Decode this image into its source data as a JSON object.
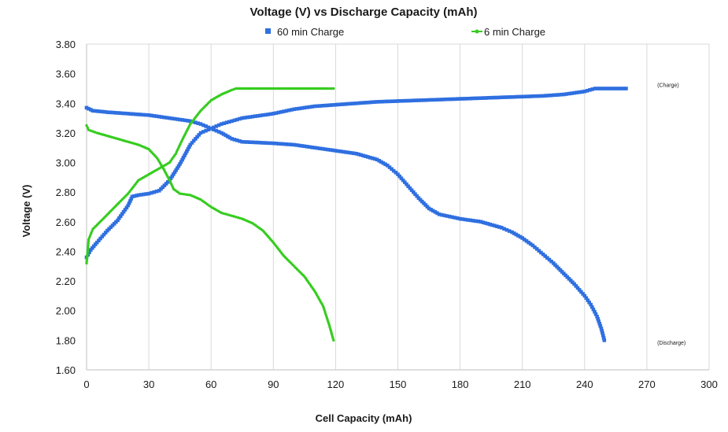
{
  "chart_data": {
    "type": "scatter",
    "title": "Voltage (V) vs Discharge Capacity (mAh)",
    "xlabel": "Cell Capacity (mAh)",
    "ylabel": "Voltage (V)",
    "xlim": [
      0,
      300
    ],
    "ylim": [
      1.6,
      3.8
    ],
    "xticks": [
      0,
      30,
      60,
      90,
      120,
      150,
      180,
      210,
      240,
      270,
      300
    ],
    "yticks": [
      1.6,
      1.8,
      2.0,
      2.2,
      2.4,
      2.6,
      2.8,
      3.0,
      3.2,
      3.4,
      3.6,
      3.8
    ],
    "ytick_labels": [
      "1.60",
      "1.80",
      "2.00",
      "2.20",
      "2.40",
      "2.60",
      "2.80",
      "3.00",
      "3.20",
      "3.40",
      "3.60",
      "3.80"
    ],
    "grid": "vertical",
    "legend_position": "top",
    "annotations": [
      {
        "text": "(Charge)",
        "x": 275,
        "y": 3.51
      },
      {
        "text": "(Discharge)",
        "x": 275,
        "y": 1.77
      }
    ],
    "series": [
      {
        "name": "60 min Charge",
        "subtype": "charge",
        "color": "#2f6fe0",
        "marker": "square",
        "points": [
          [
            0,
            2.36
          ],
          [
            2,
            2.41
          ],
          [
            5,
            2.46
          ],
          [
            10,
            2.54
          ],
          [
            15,
            2.61
          ],
          [
            20,
            2.71
          ],
          [
            22,
            2.77
          ],
          [
            25,
            2.78
          ],
          [
            30,
            2.79
          ],
          [
            35,
            2.81
          ],
          [
            40,
            2.88
          ],
          [
            45,
            2.99
          ],
          [
            50,
            3.12
          ],
          [
            55,
            3.2
          ],
          [
            60,
            3.23
          ],
          [
            65,
            3.26
          ],
          [
            70,
            3.28
          ],
          [
            75,
            3.3
          ],
          [
            80,
            3.31
          ],
          [
            90,
            3.33
          ],
          [
            100,
            3.36
          ],
          [
            110,
            3.38
          ],
          [
            120,
            3.39
          ],
          [
            140,
            3.41
          ],
          [
            160,
            3.42
          ],
          [
            180,
            3.43
          ],
          [
            200,
            3.44
          ],
          [
            220,
            3.45
          ],
          [
            230,
            3.46
          ],
          [
            240,
            3.48
          ],
          [
            245,
            3.5
          ],
          [
            250,
            3.5
          ],
          [
            255,
            3.5
          ],
          [
            260,
            3.5
          ]
        ]
      },
      {
        "name": "60 min Charge",
        "subtype": "discharge",
        "color": "#2f6fe0",
        "marker": "square",
        "points": [
          [
            0,
            3.37
          ],
          [
            3,
            3.35
          ],
          [
            10,
            3.34
          ],
          [
            20,
            3.33
          ],
          [
            30,
            3.32
          ],
          [
            40,
            3.3
          ],
          [
            50,
            3.28
          ],
          [
            55,
            3.26
          ],
          [
            60,
            3.23
          ],
          [
            65,
            3.2
          ],
          [
            70,
            3.16
          ],
          [
            75,
            3.14
          ],
          [
            90,
            3.13
          ],
          [
            100,
            3.12
          ],
          [
            110,
            3.1
          ],
          [
            120,
            3.08
          ],
          [
            130,
            3.06
          ],
          [
            140,
            3.02
          ],
          [
            145,
            2.98
          ],
          [
            150,
            2.92
          ],
          [
            155,
            2.84
          ],
          [
            160,
            2.76
          ],
          [
            165,
            2.69
          ],
          [
            170,
            2.65
          ],
          [
            180,
            2.62
          ],
          [
            190,
            2.6
          ],
          [
            200,
            2.56
          ],
          [
            205,
            2.53
          ],
          [
            210,
            2.49
          ],
          [
            215,
            2.44
          ],
          [
            220,
            2.38
          ],
          [
            225,
            2.32
          ],
          [
            230,
            2.25
          ],
          [
            235,
            2.18
          ],
          [
            240,
            2.1
          ],
          [
            243,
            2.04
          ],
          [
            246,
            1.96
          ],
          [
            248,
            1.88
          ],
          [
            249.5,
            1.8
          ]
        ]
      },
      {
        "name": "6 min Charge",
        "subtype": "charge",
        "color": "#35cc1e",
        "marker": "plus",
        "points": [
          [
            0,
            2.32
          ],
          [
            1,
            2.48
          ],
          [
            3,
            2.55
          ],
          [
            8,
            2.62
          ],
          [
            15,
            2.72
          ],
          [
            20,
            2.79
          ],
          [
            25,
            2.88
          ],
          [
            30,
            2.92
          ],
          [
            35,
            2.96
          ],
          [
            40,
            3.0
          ],
          [
            43,
            3.06
          ],
          [
            46,
            3.15
          ],
          [
            50,
            3.26
          ],
          [
            55,
            3.35
          ],
          [
            60,
            3.42
          ],
          [
            65,
            3.46
          ],
          [
            70,
            3.49
          ],
          [
            72,
            3.5
          ],
          [
            80,
            3.5
          ],
          [
            90,
            3.5
          ],
          [
            100,
            3.5
          ],
          [
            110,
            3.5
          ],
          [
            119,
            3.5
          ]
        ]
      },
      {
        "name": "6 min Charge",
        "subtype": "discharge",
        "color": "#35cc1e",
        "marker": "plus",
        "points": [
          [
            0,
            3.25
          ],
          [
            1,
            3.22
          ],
          [
            5,
            3.2
          ],
          [
            15,
            3.16
          ],
          [
            25,
            3.12
          ],
          [
            30,
            3.09
          ],
          [
            34,
            3.03
          ],
          [
            37,
            2.96
          ],
          [
            40,
            2.88
          ],
          [
            42,
            2.82
          ],
          [
            45,
            2.79
          ],
          [
            50,
            2.78
          ],
          [
            55,
            2.75
          ],
          [
            60,
            2.7
          ],
          [
            65,
            2.66
          ],
          [
            70,
            2.64
          ],
          [
            75,
            2.62
          ],
          [
            80,
            2.59
          ],
          [
            85,
            2.54
          ],
          [
            90,
            2.46
          ],
          [
            95,
            2.37
          ],
          [
            100,
            2.3
          ],
          [
            105,
            2.23
          ],
          [
            110,
            2.13
          ],
          [
            114,
            2.03
          ],
          [
            117,
            1.9
          ],
          [
            119,
            1.8
          ]
        ]
      }
    ]
  }
}
